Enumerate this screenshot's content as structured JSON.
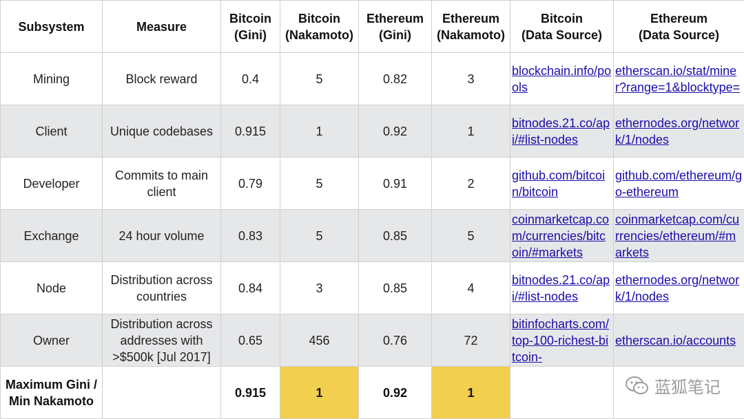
{
  "headers": [
    {
      "line1": "Subsystem",
      "line2": ""
    },
    {
      "line1": "Measure",
      "line2": ""
    },
    {
      "line1": "Bitcoin",
      "line2": "(Gini)"
    },
    {
      "line1": "Bitcoin",
      "line2": "(Nakamoto)"
    },
    {
      "line1": "Ethereum",
      "line2": "(Gini)"
    },
    {
      "line1": "Ethereum",
      "line2": "(Nakamoto)"
    },
    {
      "line1": "Bitcoin",
      "line2": "(Data Source)"
    },
    {
      "line1": "Ethereum",
      "line2": "(Data Source)"
    }
  ],
  "rows": [
    {
      "subsystem": "Mining",
      "measure": "Block reward",
      "btc_gini": "0.4",
      "btc_nakamoto": "5",
      "eth_gini": "0.82",
      "eth_nakamoto": "3",
      "btc_source": "blockchain.info/pools",
      "eth_source": "etherscan.io/stat/miner?range=1&blocktype="
    },
    {
      "subsystem": "Client",
      "measure": "Unique codebases",
      "btc_gini": "0.915",
      "btc_nakamoto": "1",
      "eth_gini": "0.92",
      "eth_nakamoto": "1",
      "btc_source": "bitnodes.21.co/api/#list-nodes",
      "eth_source": "ethernodes.org/network/1/nodes"
    },
    {
      "subsystem": "Developer",
      "measure": "Commits to main client",
      "btc_gini": "0.79",
      "btc_nakamoto": "5",
      "eth_gini": "0.91",
      "eth_nakamoto": "2",
      "btc_source": "github.com/bitcoin/bitcoin",
      "eth_source": "github.com/ethereum/go-ethereum"
    },
    {
      "subsystem": "Exchange",
      "measure": "24 hour volume",
      "btc_gini": "0.83",
      "btc_nakamoto": "5",
      "eth_gini": "0.85",
      "eth_nakamoto": "5",
      "btc_source": "coinmarketcap.com/currencies/bitcoin/#markets",
      "eth_source": "coinmarketcap.com/currencies/ethereum/#markets"
    },
    {
      "subsystem": "Node",
      "measure": "Distribution across countries",
      "btc_gini": "0.84",
      "btc_nakamoto": "3",
      "eth_gini": "0.85",
      "eth_nakamoto": "4",
      "btc_source": "bitnodes.21.co/api/#list-nodes",
      "eth_source": "ethernodes.org/network/1/nodes"
    },
    {
      "subsystem": "Owner",
      "measure": "Distribution across addresses with >$500k [Jul 2017]",
      "btc_gini": "0.65",
      "btc_nakamoto": "456",
      "eth_gini": "0.76",
      "eth_nakamoto": "72",
      "btc_source": "bitinfocharts.com/top-100-richest-bitcoin-",
      "eth_source": "etherscan.io/accounts"
    }
  ],
  "summary": {
    "label_line1": "Maximum Gini /",
    "label_line2": "Min Nakamoto",
    "btc_gini": "0.915",
    "btc_nakamoto": "1",
    "eth_gini": "0.92",
    "eth_nakamoto": "1"
  },
  "colors": {
    "highlight": "#f2cf4e",
    "alt_row": "#e6e7e9",
    "link": "#1a0dab"
  },
  "watermark": {
    "icon": "wechat-icon",
    "text": "蓝狐笔记"
  }
}
